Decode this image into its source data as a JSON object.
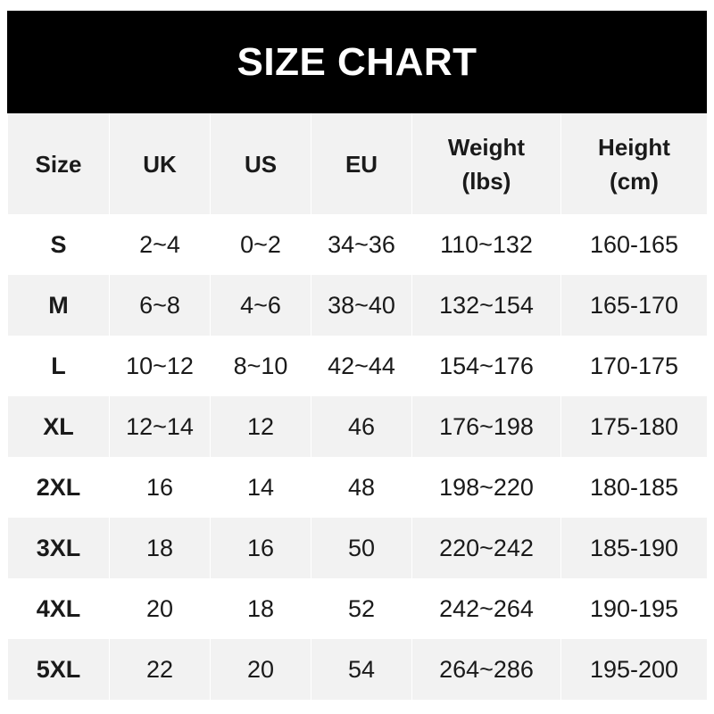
{
  "title": "SIZE CHART",
  "headers": [
    [
      "Size",
      ""
    ],
    [
      "UK",
      ""
    ],
    [
      "US",
      ""
    ],
    [
      "EU",
      ""
    ],
    [
      "Weight",
      "(lbs)"
    ],
    [
      "Height",
      "(cm)"
    ]
  ],
  "rows": [
    [
      "S",
      "2~4",
      "0~2",
      "34~36",
      "110~132",
      "160-165"
    ],
    [
      "M",
      "6~8",
      "4~6",
      "38~40",
      "132~154",
      "165-170"
    ],
    [
      "L",
      "10~12",
      "8~10",
      "42~44",
      "154~176",
      "170-175"
    ],
    [
      "XL",
      "12~14",
      "12",
      "46",
      "176~198",
      "175-180"
    ],
    [
      "2XL",
      "16",
      "14",
      "48",
      "198~220",
      "180-185"
    ],
    [
      "3XL",
      "18",
      "16",
      "50",
      "220~242",
      "185-190"
    ],
    [
      "4XL",
      "20",
      "18",
      "52",
      "242~264",
      "190-195"
    ],
    [
      "5XL",
      "22",
      "20",
      "54",
      "264~286",
      "195-200"
    ]
  ]
}
